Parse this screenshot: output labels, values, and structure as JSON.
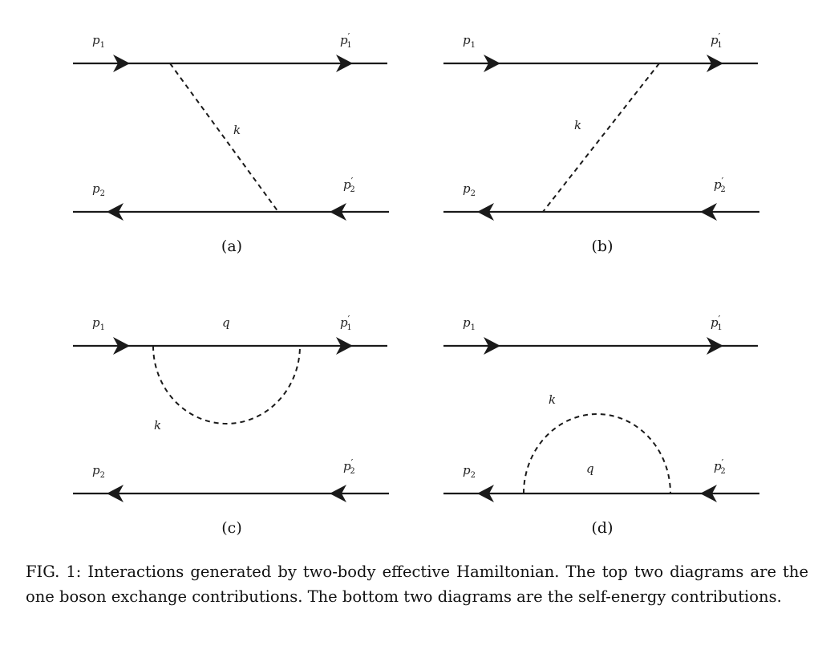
{
  "panels": [
    {
      "id": "a",
      "label": "(a)",
      "top_in": {
        "base": "p",
        "sub": "1",
        "prime": ""
      },
      "top_out": {
        "base": "p",
        "sub": "1",
        "prime": "′"
      },
      "bottom_in": {
        "base": "p",
        "sub": "2",
        "prime": ""
      },
      "bottom_out": {
        "base": "p",
        "sub": "2",
        "prime": "′"
      },
      "boson_label": "k"
    },
    {
      "id": "b",
      "label": "(b)",
      "top_in": {
        "base": "p",
        "sub": "1",
        "prime": ""
      },
      "top_out": {
        "base": "p",
        "sub": "1",
        "prime": "′"
      },
      "bottom_in": {
        "base": "p",
        "sub": "2",
        "prime": ""
      },
      "bottom_out": {
        "base": "p",
        "sub": "2",
        "prime": "′"
      },
      "boson_label": "k"
    },
    {
      "id": "c",
      "label": "(c)",
      "top_in": {
        "base": "p",
        "sub": "1",
        "prime": ""
      },
      "top_out": {
        "base": "p",
        "sub": "1",
        "prime": "′"
      },
      "bottom_in": {
        "base": "p",
        "sub": "2",
        "prime": ""
      },
      "bottom_out": {
        "base": "p",
        "sub": "2",
        "prime": "′"
      },
      "boson_label": "k",
      "internal_label": "q"
    },
    {
      "id": "d",
      "label": "(d)",
      "top_in": {
        "base": "p",
        "sub": "1",
        "prime": ""
      },
      "top_out": {
        "base": "p",
        "sub": "1",
        "prime": "′"
      },
      "bottom_in": {
        "base": "p",
        "sub": "2",
        "prime": ""
      },
      "bottom_out": {
        "base": "p",
        "sub": "2",
        "prime": "′"
      },
      "boson_label": "k",
      "internal_label": "q"
    }
  ],
  "caption": "FIG. 1: Interactions generated by two-body effective Hamiltonian. The top two diagrams are the one boson exchange contributions. The bottom two diagrams are the self-energy contributions."
}
